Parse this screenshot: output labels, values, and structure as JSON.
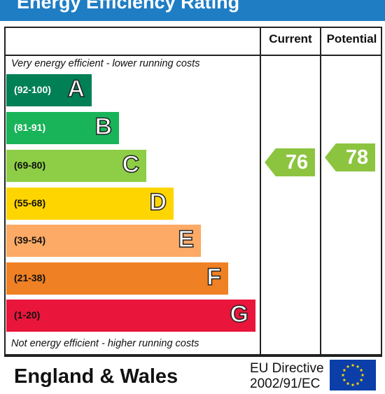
{
  "title": "Energy Efficiency Rating",
  "columns": {
    "current": "Current",
    "potential": "Potential"
  },
  "top_note": "Very energy efficient - lower running costs",
  "bottom_note": "Not energy efficient - higher running costs",
  "bands": [
    {
      "letter": "A",
      "range": "(92-100)",
      "color": "#008054"
    },
    {
      "letter": "B",
      "range": "(81-91)",
      "color": "#19b459"
    },
    {
      "letter": "C",
      "range": "(69-80)",
      "color": "#8dce46"
    },
    {
      "letter": "D",
      "range": "(55-68)",
      "color": "#ffd500"
    },
    {
      "letter": "E",
      "range": "(39-54)",
      "color": "#fcaa65"
    },
    {
      "letter": "F",
      "range": "(21-38)",
      "color": "#ef8023"
    },
    {
      "letter": "G",
      "range": "(1-20)",
      "color": "#e9153b"
    }
  ],
  "current_rating": {
    "value": "76",
    "band": "C",
    "color": "#8cc43f"
  },
  "potential_rating": {
    "value": "78",
    "band": "C",
    "color": "#8cc43f"
  },
  "footer": {
    "region": "England & Wales",
    "directive_line1": "EU Directive",
    "directive_line2": "2002/91/EC"
  },
  "colors": {
    "title_bar": "#1f7dc4",
    "eu_flag": "#0b3ea8",
    "eu_stars": "#ffdd00"
  }
}
